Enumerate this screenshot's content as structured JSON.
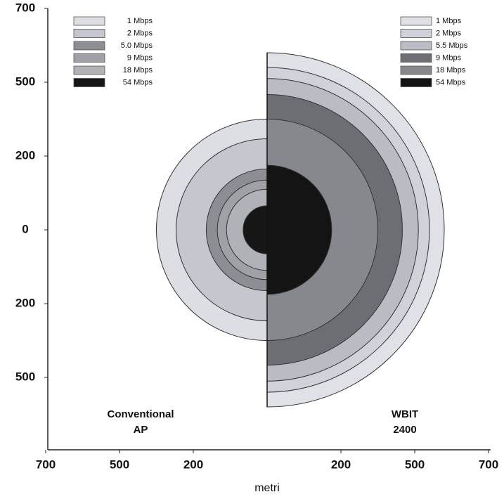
{
  "chart_data": {
    "type": "coverage",
    "xlabel": "metri",
    "xlim": [
      -700,
      700
    ],
    "ylim": [
      -700,
      700
    ],
    "xticks": [
      {
        "value": -700,
        "label": "700"
      },
      {
        "value": -500,
        "label": "500"
      },
      {
        "value": -200,
        "label": "200"
      },
      200,
      500,
      700
    ],
    "yticks": [
      700,
      500,
      200,
      0,
      {
        "value": -200,
        "label": "200"
      },
      {
        "value": -500,
        "label": "500"
      }
    ],
    "series": [
      {
        "label_lines": [
          "Conventional",
          "AP"
        ],
        "side": "left",
        "categories": [
          "1 Mbps",
          "2 Mbps",
          "5.0 Mbps",
          "9 Mbps",
          "18 Mbps",
          "54 Mbps"
        ],
        "values": [
          350,
          270,
          165,
          135,
          110,
          65
        ],
        "colors": [
          "#dcdee3",
          "#c4c7cd",
          "#8c8e93",
          "#9fa1a6",
          "#b0b2b7",
          "#161616"
        ]
      },
      {
        "label_lines": [
          "WBIT",
          "2400"
        ],
        "side": "right",
        "categories": [
          "1 Mbps",
          "2 Mbps",
          "5.5 Mbps",
          "9 Mbps",
          "18 Mbps",
          "54 Mbps"
        ],
        "values": [
          580,
          540,
          510,
          450,
          350,
          175
        ],
        "colors": [
          "#dfe1e6",
          "#cfd2d8",
          "#b9bcc2",
          "#6c6e73",
          "#86888d",
          "#141414"
        ]
      }
    ]
  }
}
